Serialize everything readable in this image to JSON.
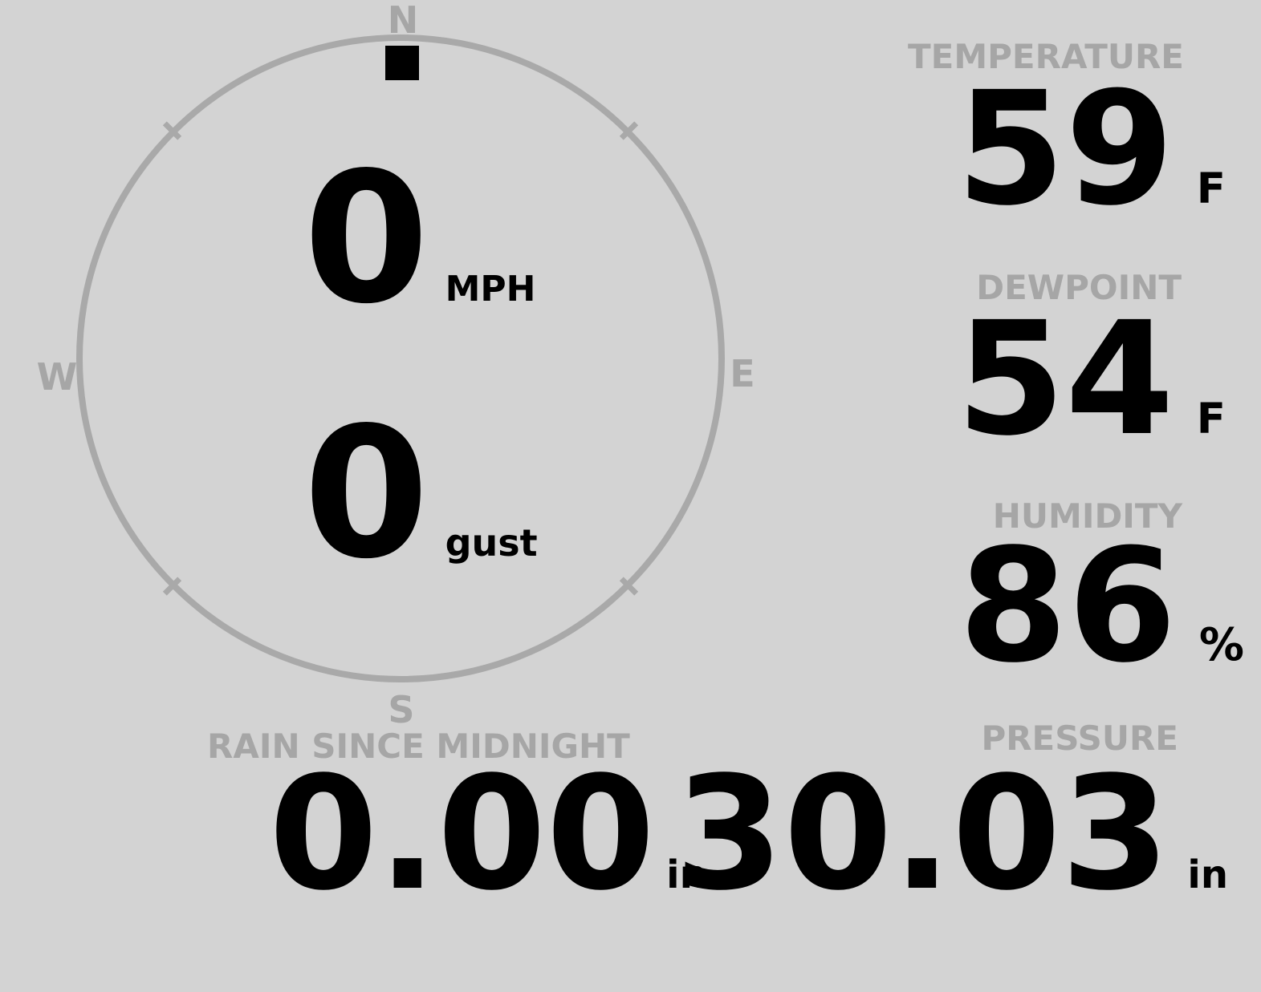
{
  "colors": {
    "background": "#d3d3d3",
    "muted_gray": "#a6a6a6",
    "ring_gray": "#a9a9a9",
    "foreground": "#000000"
  },
  "compass": {
    "cardinals": {
      "north": "N",
      "east": "E",
      "south": "S",
      "west": "W"
    },
    "wind": {
      "direction": "N",
      "speed": "0",
      "speed_unit": "MPH",
      "gust": "0",
      "gust_label": "gust"
    }
  },
  "metrics": {
    "temperature": {
      "label": "TEMPERATURE",
      "value": "59",
      "unit": "F"
    },
    "dewpoint": {
      "label": "DEWPOINT",
      "value": "54",
      "unit": "F"
    },
    "humidity": {
      "label": "HUMIDITY",
      "value": "86",
      "unit": "%"
    },
    "rain": {
      "label": "RAIN SINCE MIDNIGHT",
      "value": "0.00",
      "unit": "in"
    },
    "pressure": {
      "label": "PRESSURE",
      "value": "30.03",
      "unit": "in"
    }
  }
}
